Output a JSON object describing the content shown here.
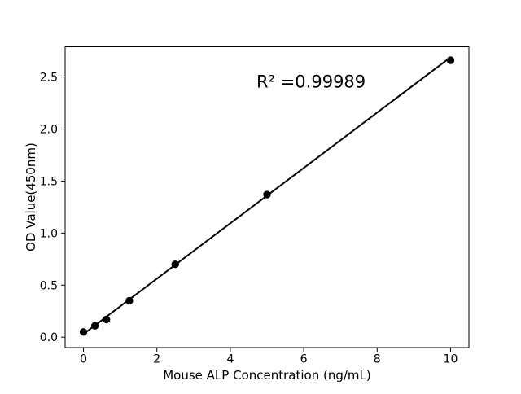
{
  "chart_data": {
    "type": "scatter",
    "title": "",
    "xlabel": "Mouse ALP Concentration (ng/mL)",
    "ylabel": "OD Value(450nm)",
    "annotation": {
      "text": "R² =0.99989",
      "x": 6.2,
      "y": 2.4
    },
    "x": [
      0,
      0.3125,
      0.625,
      1.25,
      2.5,
      5,
      10
    ],
    "y": [
      0.05,
      0.11,
      0.17,
      0.35,
      0.7,
      1.37,
      2.66
    ],
    "fit_line": {
      "x": [
        0,
        10
      ],
      "y": [
        0.03,
        2.69
      ]
    },
    "xlim": [
      -0.5,
      10.5
    ],
    "ylim": [
      -0.1,
      2.79
    ],
    "xticks": [
      0,
      2,
      4,
      6,
      8,
      10
    ],
    "xtick_labels": [
      "0",
      "2",
      "4",
      "6",
      "8",
      "10"
    ],
    "yticks": [
      0.0,
      0.5,
      1.0,
      1.5,
      2.0,
      2.5
    ],
    "ytick_labels": [
      "0.0",
      "0.5",
      "1.0",
      "1.5",
      "2.0",
      "2.5"
    ],
    "grid": false,
    "legend": "none",
    "marker_color": "#000000",
    "line_color": "#000000",
    "axis_color": "#000000",
    "background_color": "#ffffff"
  }
}
